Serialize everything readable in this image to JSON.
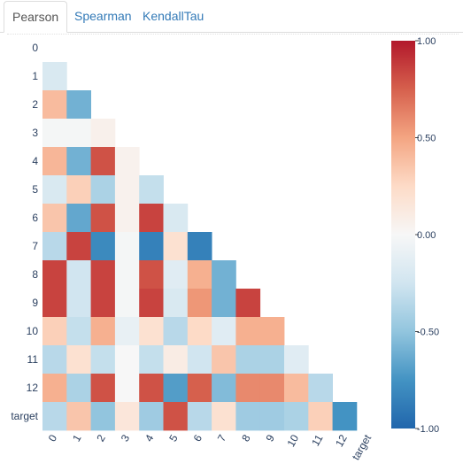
{
  "tabs": [
    {
      "label": "Pearson",
      "active": true
    },
    {
      "label": "Spearman",
      "active": false
    },
    {
      "label": "KendallTau",
      "active": false
    }
  ],
  "chart_data": {
    "type": "heatmap",
    "title": "",
    "rows": [
      "0",
      "1",
      "2",
      "3",
      "4",
      "5",
      "6",
      "7",
      "8",
      "9",
      "10",
      "11",
      "12",
      "target"
    ],
    "columns": [
      "0",
      "1",
      "2",
      "3",
      "4",
      "5",
      "6",
      "7",
      "8",
      "9",
      "10",
      "11",
      "12",
      "target"
    ],
    "zlim": [
      -1,
      1
    ],
    "colorbar_ticks": [
      "1.00",
      "0.50",
      "0.00",
      "-0.50",
      "-1.00"
    ],
    "colorscale": [
      "#2166ac",
      "#4393c3",
      "#92c5de",
      "#d1e5f0",
      "#f7f7f7",
      "#fddbc7",
      "#f4a582",
      "#d6604d",
      "#b2182b"
    ],
    "values": [
      [],
      [
        -0.2
      ],
      [
        0.4,
        -0.6
      ],
      [
        -0.02,
        -0.02,
        0.06
      ],
      [
        0.42,
        -0.6,
        0.8,
        0.05
      ],
      [
        -0.2,
        0.3,
        -0.4,
        0.05,
        -0.3
      ],
      [
        0.35,
        -0.65,
        0.8,
        0.05,
        0.85,
        -0.2
      ],
      [
        -0.35,
        0.85,
        -0.8,
        -0.02,
        -0.85,
        0.2,
        -0.85
      ],
      [
        0.85,
        -0.25,
        0.85,
        -0.02,
        0.8,
        -0.15,
        0.45,
        -0.6
      ],
      [
        0.85,
        -0.25,
        0.85,
        -0.02,
        0.85,
        -0.2,
        0.55,
        -0.6,
        0.85
      ],
      [
        0.3,
        -0.3,
        0.45,
        -0.1,
        0.2,
        -0.35,
        0.25,
        -0.15,
        0.45,
        0.45
      ],
      [
        -0.35,
        0.2,
        -0.3,
        0.0,
        -0.3,
        0.1,
        -0.25,
        0.35,
        -0.4,
        -0.4,
        -0.15
      ],
      [
        0.45,
        -0.4,
        0.8,
        0.0,
        0.8,
        -0.7,
        0.75,
        -0.55,
        0.6,
        0.6,
        0.4,
        -0.35
      ],
      [
        -0.35,
        0.35,
        -0.5,
        0.15,
        -0.45,
        0.8,
        -0.35,
        0.2,
        -0.45,
        -0.45,
        -0.4,
        0.3,
        -0.75
      ]
    ]
  }
}
